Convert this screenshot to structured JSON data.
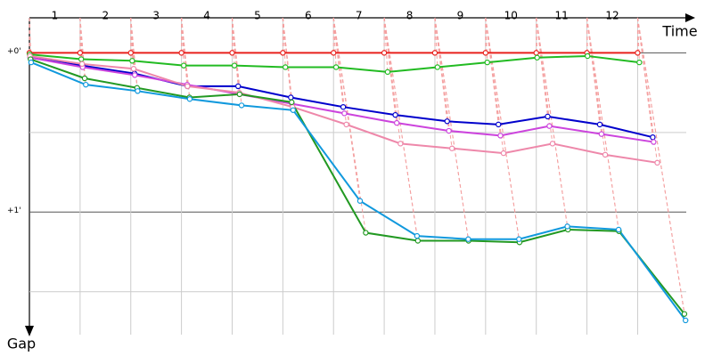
{
  "chart_data": {
    "type": "line",
    "x_label": "Time",
    "y_label": "Gap",
    "x": [
      0,
      1,
      2,
      3,
      4,
      5,
      6,
      7,
      8,
      9,
      10,
      11,
      12
    ],
    "xlim": [
      0,
      13.1
    ],
    "xticks": [
      {
        "value": 0.5,
        "label": "1"
      },
      {
        "value": 1.5,
        "label": "2"
      },
      {
        "value": 2.5,
        "label": "3"
      },
      {
        "value": 3.5,
        "label": "4"
      },
      {
        "value": 4.5,
        "label": "5"
      },
      {
        "value": 5.5,
        "label": "6"
      },
      {
        "value": 6.5,
        "label": "7"
      },
      {
        "value": 7.5,
        "label": "8"
      },
      {
        "value": 8.5,
        "label": "9"
      },
      {
        "value": 9.5,
        "label": "10"
      },
      {
        "value": 10.5,
        "label": "11"
      },
      {
        "value": 11.5,
        "label": "12"
      }
    ],
    "ylim": [
      -0.22,
      1.82
    ],
    "yticks": [
      {
        "value": 0,
        "label": "+0'"
      },
      {
        "value": 0.5,
        "label": null
      },
      {
        "value": 1,
        "label": "+1'"
      },
      {
        "value": 1.5,
        "label": null
      }
    ],
    "grid": true,
    "series": [
      {
        "color": "#e8201c",
        "values": [
          0,
          0,
          0,
          0,
          0,
          0,
          0,
          0,
          0,
          0,
          0,
          0,
          0
        ]
      },
      {
        "color": "#22bb22",
        "values": [
          0.01,
          0.04,
          0.05,
          0.08,
          0.08,
          0.09,
          0.09,
          0.12,
          0.09,
          0.06,
          0.03,
          0.02,
          0.06
        ]
      },
      {
        "color": "#0000cc",
        "values": [
          0.03,
          0.08,
          0.13,
          0.21,
          0.21,
          0.28,
          0.34,
          0.39,
          0.43,
          0.45,
          0.4,
          0.45,
          0.53
        ]
      },
      {
        "color": "#cc44dd",
        "values": [
          0.03,
          0.09,
          0.14,
          0.2,
          0.26,
          0.32,
          0.38,
          0.44,
          0.49,
          0.52,
          0.46,
          0.51,
          0.56
        ]
      },
      {
        "color": "#ee88aa",
        "values": [
          0.02,
          0.07,
          0.1,
          0.21,
          0.25,
          0.34,
          0.45,
          0.57,
          0.6,
          0.63,
          0.57,
          0.64,
          0.69
        ]
      },
      {
        "color": "#229922",
        "values": [
          0.04,
          0.16,
          0.22,
          0.28,
          0.26,
          0.31,
          1.13,
          1.18,
          1.18,
          1.19,
          1.11,
          1.12,
          1.64
        ]
      },
      {
        "color": "#1199dd",
        "values": [
          0.06,
          0.2,
          0.24,
          0.29,
          0.33,
          0.36,
          0.93,
          1.15,
          1.17,
          1.17,
          1.09,
          1.11,
          1.68
        ]
      }
    ]
  }
}
